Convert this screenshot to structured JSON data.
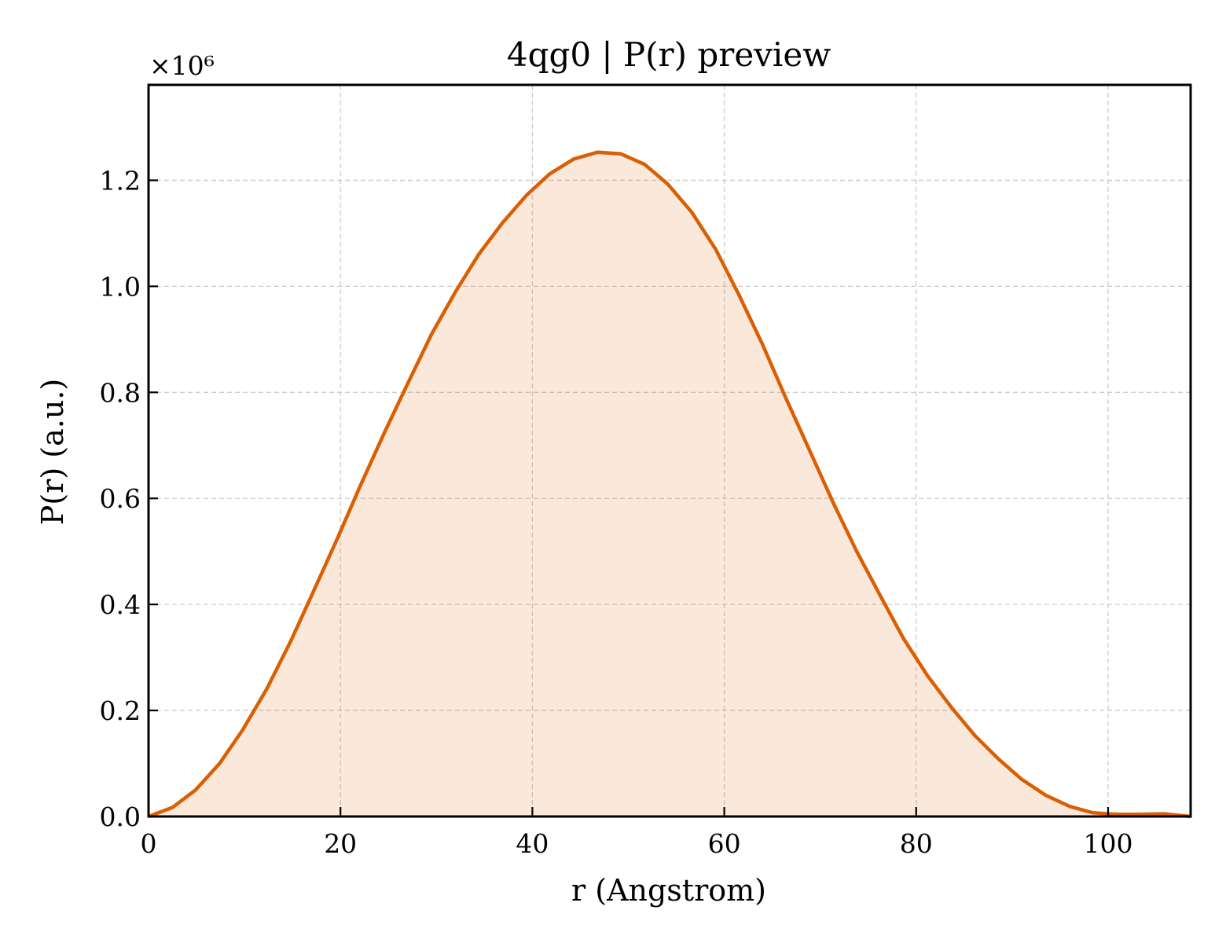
{
  "chart_data": {
    "type": "area",
    "title": "4qg0 | P(r) preview",
    "xlabel": "r (Angstrom)",
    "ylabel": "P(r) (a.u.)",
    "y_scale_label": "×10⁶",
    "y_multiplier": 1000000,
    "xlim": [
      0,
      108.6
    ],
    "ylim": [
      0,
      1.38
    ],
    "xticks": [
      0,
      20,
      40,
      60,
      80,
      100
    ],
    "yticks": [
      0.0,
      0.2,
      0.4,
      0.6,
      0.8,
      1.0,
      1.2
    ],
    "xtick_labels": [
      "0",
      "20",
      "40",
      "60",
      "80",
      "100"
    ],
    "ytick_labels": [
      "0.0",
      "0.2",
      "0.4",
      "0.6",
      "0.8",
      "1.0",
      "1.2"
    ],
    "grid": true,
    "line_color": "#d95f02",
    "fill_color": "#d95f02",
    "fill_opacity": 0.14,
    "series": [
      {
        "x": [
          0,
          2.5,
          4.9,
          7.4,
          9.8,
          12.3,
          14.8,
          17.2,
          19.7,
          22.1,
          24.6,
          27.1,
          29.5,
          32.0,
          34.4,
          36.9,
          39.4,
          41.8,
          44.3,
          46.8,
          49.2,
          51.7,
          54.1,
          56.6,
          59.1,
          61.5,
          64.0,
          66.4,
          68.9,
          71.4,
          73.8,
          76.3,
          78.7,
          81.2,
          83.7,
          86.1,
          88.6,
          91.0,
          93.5,
          96.0,
          98.4,
          100.9,
          103.3,
          105.8,
          108.6
        ],
        "y": [
          0.0,
          0.017,
          0.05,
          0.1,
          0.163,
          0.24,
          0.33,
          0.425,
          0.525,
          0.625,
          0.725,
          0.82,
          0.91,
          0.99,
          1.06,
          1.12,
          1.172,
          1.212,
          1.24,
          1.253,
          1.25,
          1.23,
          1.193,
          1.14,
          1.07,
          0.985,
          0.89,
          0.79,
          0.69,
          0.59,
          0.5,
          0.415,
          0.335,
          0.265,
          0.205,
          0.153,
          0.108,
          0.07,
          0.04,
          0.019,
          0.007,
          0.004,
          0.004,
          0.005,
          0.0
        ]
      }
    ]
  }
}
